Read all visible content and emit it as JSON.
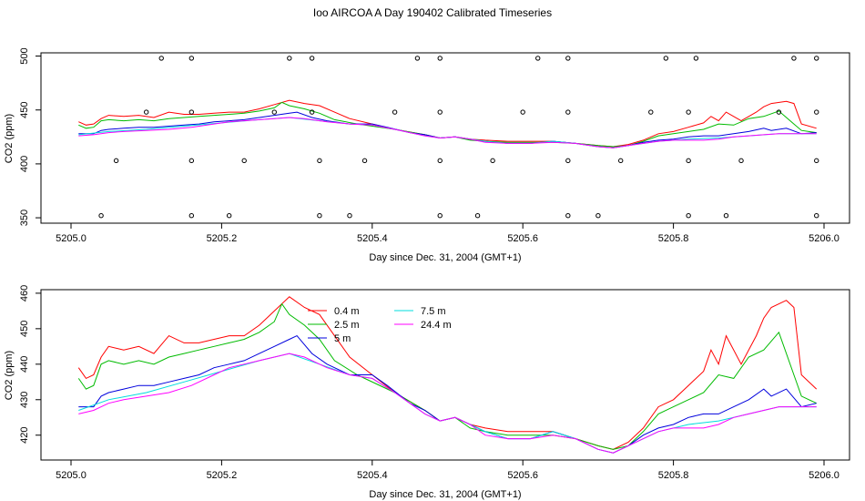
{
  "title": "Ioo AIRCOA A  Day 190402  Calibrated Timeseries",
  "chart_data": [
    {
      "type": "line",
      "panel": "top",
      "xlabel": "Day since Dec. 31, 2004 (GMT+1)",
      "ylabel": "CO2 (ppm)",
      "xlim": [
        4.99,
        1.01
      ],
      "ylim": [
        345,
        503
      ],
      "xticks": [
        "5205.0",
        "5205.2",
        "5205.4",
        "5205.6",
        "5205.8",
        "5206.0"
      ],
      "yticks": [
        "350",
        "400",
        "450",
        "500"
      ],
      "x_offset": 5205,
      "series": [
        {
          "name": "0.4 m",
          "color": "#ff0000",
          "points": [
            [
              0.01,
              439
            ],
            [
              0.02,
              436
            ],
            [
              0.03,
              437
            ],
            [
              0.04,
              442
            ],
            [
              0.05,
              445
            ],
            [
              0.07,
              444
            ],
            [
              0.09,
              445
            ],
            [
              0.11,
              443
            ],
            [
              0.13,
              448
            ],
            [
              0.15,
              446
            ],
            [
              0.17,
              446
            ],
            [
              0.19,
              447
            ],
            [
              0.21,
              448
            ],
            [
              0.23,
              448
            ],
            [
              0.25,
              451
            ],
            [
              0.27,
              455
            ],
            [
              0.29,
              459
            ],
            [
              0.31,
              456
            ],
            [
              0.33,
              454
            ],
            [
              0.35,
              448
            ],
            [
              0.37,
              442
            ],
            [
              0.4,
              437
            ],
            [
              0.43,
              432
            ],
            [
              0.47,
              427
            ],
            [
              0.49,
              424
            ],
            [
              0.51,
              425
            ],
            [
              0.53,
              423
            ],
            [
              0.55,
              422
            ],
            [
              0.58,
              421
            ],
            [
              0.61,
              421
            ],
            [
              0.64,
              421
            ],
            [
              0.67,
              419
            ],
            [
              0.7,
              417
            ],
            [
              0.72,
              416
            ],
            [
              0.74,
              418
            ],
            [
              0.76,
              422
            ],
            [
              0.78,
              428
            ],
            [
              0.8,
              430
            ],
            [
              0.82,
              434
            ],
            [
              0.84,
              438
            ],
            [
              0.85,
              444
            ],
            [
              0.86,
              440
            ],
            [
              0.87,
              448
            ],
            [
              0.89,
              440
            ],
            [
              0.91,
              448
            ],
            [
              0.92,
              453
            ],
            [
              0.93,
              456
            ],
            [
              0.95,
              458
            ],
            [
              0.96,
              456
            ],
            [
              0.97,
              437
            ],
            [
              0.99,
              433
            ]
          ]
        },
        {
          "name": "2.5 m",
          "color": "#00bb00",
          "points": [
            [
              0.01,
              436
            ],
            [
              0.02,
              433
            ],
            [
              0.03,
              434
            ],
            [
              0.04,
              440
            ],
            [
              0.05,
              441
            ],
            [
              0.07,
              440
            ],
            [
              0.09,
              441
            ],
            [
              0.11,
              440
            ],
            [
              0.13,
              442
            ],
            [
              0.15,
              443
            ],
            [
              0.17,
              444
            ],
            [
              0.19,
              445
            ],
            [
              0.21,
              446
            ],
            [
              0.23,
              447
            ],
            [
              0.25,
              449
            ],
            [
              0.27,
              452
            ],
            [
              0.28,
              457
            ],
            [
              0.29,
              454
            ],
            [
              0.31,
              451
            ],
            [
              0.33,
              447
            ],
            [
              0.35,
              441
            ],
            [
              0.38,
              437
            ],
            [
              0.43,
              432
            ],
            [
              0.47,
              427
            ],
            [
              0.49,
              424
            ],
            [
              0.51,
              425
            ],
            [
              0.53,
              422
            ],
            [
              0.55,
              421
            ],
            [
              0.58,
              420
            ],
            [
              0.61,
              420
            ],
            [
              0.64,
              420
            ],
            [
              0.67,
              419
            ],
            [
              0.7,
              417
            ],
            [
              0.72,
              416
            ],
            [
              0.74,
              417
            ],
            [
              0.76,
              421
            ],
            [
              0.78,
              426
            ],
            [
              0.8,
              428
            ],
            [
              0.82,
              430
            ],
            [
              0.84,
              432
            ],
            [
              0.86,
              437
            ],
            [
              0.88,
              436
            ],
            [
              0.9,
              442
            ],
            [
              0.92,
              444
            ],
            [
              0.94,
              449
            ],
            [
              0.96,
              437
            ],
            [
              0.97,
              431
            ],
            [
              0.99,
              429
            ]
          ]
        },
        {
          "name": "5 m",
          "color": "#0000dd",
          "points": [
            [
              0.01,
              428
            ],
            [
              0.03,
              428
            ],
            [
              0.04,
              431
            ],
            [
              0.05,
              432
            ],
            [
              0.07,
              433
            ],
            [
              0.09,
              434
            ],
            [
              0.11,
              434
            ],
            [
              0.13,
              435
            ],
            [
              0.15,
              436
            ],
            [
              0.17,
              437
            ],
            [
              0.19,
              439
            ],
            [
              0.21,
              440
            ],
            [
              0.23,
              441
            ],
            [
              0.25,
              443
            ],
            [
              0.27,
              445
            ],
            [
              0.29,
              447
            ],
            [
              0.3,
              448
            ],
            [
              0.32,
              443
            ],
            [
              0.34,
              440
            ],
            [
              0.37,
              437
            ],
            [
              0.4,
              437
            ],
            [
              0.42,
              434
            ],
            [
              0.45,
              429
            ],
            [
              0.47,
              427
            ],
            [
              0.49,
              424
            ],
            [
              0.51,
              425
            ],
            [
              0.53,
              423
            ],
            [
              0.55,
              421
            ],
            [
              0.58,
              419
            ],
            [
              0.61,
              419
            ],
            [
              0.64,
              421
            ],
            [
              0.67,
              419
            ],
            [
              0.7,
              416
            ],
            [
              0.72,
              415
            ],
            [
              0.74,
              417
            ],
            [
              0.76,
              420
            ],
            [
              0.78,
              422
            ],
            [
              0.8,
              423
            ],
            [
              0.82,
              425
            ],
            [
              0.84,
              426
            ],
            [
              0.86,
              426
            ],
            [
              0.88,
              428
            ],
            [
              0.9,
              430
            ],
            [
              0.92,
              433
            ],
            [
              0.93,
              431
            ],
            [
              0.95,
              433
            ],
            [
              0.97,
              428
            ],
            [
              0.99,
              429
            ]
          ]
        },
        {
          "name": "7.5 m",
          "color": "#00dddd",
          "points": [
            [
              0.01,
              427
            ],
            [
              0.05,
              430
            ],
            [
              0.1,
              432
            ],
            [
              0.15,
              435
            ],
            [
              0.2,
              438
            ],
            [
              0.25,
              441
            ],
            [
              0.29,
              443
            ],
            [
              0.33,
              440
            ],
            [
              0.37,
              437
            ],
            [
              0.4,
              436
            ],
            [
              0.43,
              432
            ],
            [
              0.47,
              426
            ],
            [
              0.49,
              424
            ],
            [
              0.51,
              425
            ],
            [
              0.55,
              421
            ],
            [
              0.58,
              419
            ],
            [
              0.61,
              419
            ],
            [
              0.64,
              421
            ],
            [
              0.67,
              419
            ],
            [
              0.7,
              416
            ],
            [
              0.72,
              415
            ],
            [
              0.74,
              417
            ],
            [
              0.78,
              421
            ],
            [
              0.82,
              423
            ],
            [
              0.86,
              424
            ],
            [
              0.9,
              426
            ],
            [
              0.94,
              428
            ],
            [
              0.99,
              428
            ]
          ]
        },
        {
          "name": "24.4 m",
          "color": "#ff00ff",
          "points": [
            [
              0.01,
              426
            ],
            [
              0.03,
              427
            ],
            [
              0.05,
              429
            ],
            [
              0.07,
              430
            ],
            [
              0.1,
              431
            ],
            [
              0.13,
              432
            ],
            [
              0.16,
              434
            ],
            [
              0.19,
              437
            ],
            [
              0.21,
              439
            ],
            [
              0.23,
              440
            ],
            [
              0.25,
              441
            ],
            [
              0.27,
              442
            ],
            [
              0.29,
              443
            ],
            [
              0.31,
              442
            ],
            [
              0.34,
              439
            ],
            [
              0.37,
              437
            ],
            [
              0.4,
              436
            ],
            [
              0.43,
              432
            ],
            [
              0.47,
              426
            ],
            [
              0.49,
              424
            ],
            [
              0.51,
              425
            ],
            [
              0.53,
              423
            ],
            [
              0.55,
              420
            ],
            [
              0.58,
              419
            ],
            [
              0.61,
              419
            ],
            [
              0.64,
              420
            ],
            [
              0.67,
              419
            ],
            [
              0.7,
              416
            ],
            [
              0.72,
              415
            ],
            [
              0.74,
              417
            ],
            [
              0.76,
              419
            ],
            [
              0.78,
              421
            ],
            [
              0.8,
              422
            ],
            [
              0.82,
              422
            ],
            [
              0.84,
              422
            ],
            [
              0.86,
              423
            ],
            [
              0.88,
              425
            ],
            [
              0.9,
              426
            ],
            [
              0.92,
              427
            ],
            [
              0.94,
              428
            ],
            [
              0.96,
              428
            ],
            [
              0.99,
              428
            ]
          ]
        }
      ],
      "markers": {
        "style": "open-circle",
        "points": [
          [
            0.04,
            352
          ],
          [
            0.06,
            403
          ],
          [
            0.1,
            448
          ],
          [
            0.12,
            498
          ],
          [
            0.16,
            352
          ],
          [
            0.16,
            403
          ],
          [
            0.16,
            448
          ],
          [
            0.16,
            498
          ],
          [
            0.21,
            352
          ],
          [
            0.23,
            403
          ],
          [
            0.27,
            448
          ],
          [
            0.29,
            498
          ],
          [
            0.32,
            498
          ],
          [
            0.32,
            448
          ],
          [
            0.33,
            403
          ],
          [
            0.33,
            352
          ],
          [
            0.37,
            352
          ],
          [
            0.39,
            403
          ],
          [
            0.43,
            448
          ],
          [
            0.46,
            498
          ],
          [
            0.49,
            352
          ],
          [
            0.49,
            403
          ],
          [
            0.49,
            448
          ],
          [
            0.49,
            498
          ],
          [
            0.54,
            352
          ],
          [
            0.56,
            403
          ],
          [
            0.6,
            448
          ],
          [
            0.62,
            498
          ],
          [
            0.66,
            352
          ],
          [
            0.66,
            403
          ],
          [
            0.66,
            448
          ],
          [
            0.66,
            498
          ],
          [
            0.7,
            352
          ],
          [
            0.73,
            403
          ],
          [
            0.77,
            448
          ],
          [
            0.79,
            498
          ],
          [
            0.82,
            352
          ],
          [
            0.82,
            403
          ],
          [
            0.82,
            448
          ],
          [
            0.83,
            498
          ],
          [
            0.87,
            352
          ],
          [
            0.89,
            403
          ],
          [
            0.94,
            448
          ],
          [
            0.96,
            498
          ],
          [
            0.99,
            498
          ],
          [
            0.99,
            448
          ],
          [
            0.99,
            403
          ],
          [
            0.99,
            352
          ]
        ]
      }
    },
    {
      "type": "line",
      "panel": "bottom",
      "xlabel": "Day since Dec. 31, 2004 (GMT+1)",
      "ylabel": "CO2 (ppm)",
      "xlim": [
        4.99,
        1.01
      ],
      "ylim": [
        413,
        461
      ],
      "xticks": [
        "5205.0",
        "5205.2",
        "5205.4",
        "5205.6",
        "5205.8",
        "5206.0"
      ],
      "yticks": [
        "420",
        "430",
        "440",
        "450",
        "460"
      ],
      "x_offset": 5205,
      "legend": {
        "placement": "top-center",
        "entries": [
          {
            "label": "0.4 m",
            "color": "#ff0000"
          },
          {
            "label": "2.5 m",
            "color": "#00bb00"
          },
          {
            "label": "5 m",
            "color": "#0000dd"
          },
          {
            "label": "7.5 m",
            "color": "#00dddd"
          },
          {
            "label": "24.4 m",
            "color": "#ff00ff"
          }
        ]
      },
      "series_ref": "top"
    }
  ]
}
